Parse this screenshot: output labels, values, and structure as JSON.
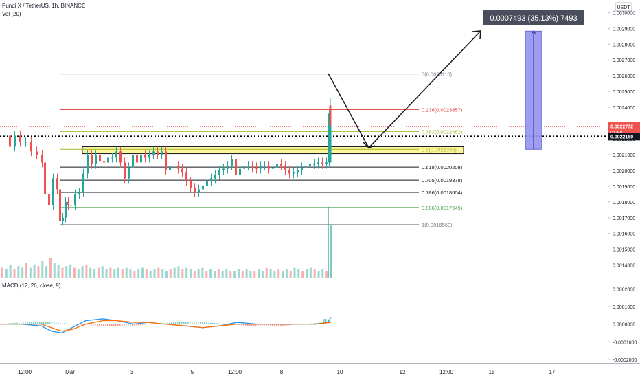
{
  "header": {
    "symbol_line": "Pundi X / TetherUS, 1h, BINANCE",
    "volume_label": "Vol (20)",
    "currency_badge": "USDT"
  },
  "measure_label": "0.0007493 (35.13%) 7493",
  "price_badges": {
    "last_price": "0.0022772",
    "countdown": "01:58",
    "dotted_level": "0.0022160"
  },
  "macd_label": "MACD (12, 26, close, 9)",
  "colors": {
    "up": "#26a69a",
    "down": "#ef5350",
    "fib_red": "#e53935",
    "fib_yellow": "#9bbd2a",
    "fib_green": "#43a047",
    "zone_fill": "#fff59d",
    "measure_fill": "#8c8cf0",
    "macd_line": "#2196f3",
    "signal_line": "#ff6d00"
  },
  "chart_data": {
    "type": "candlestick",
    "price_axis": {
      "ticks": [
        "0.0030000",
        "0.0029000",
        "0.0028000",
        "0.0027000",
        "0.0026000",
        "0.0025000",
        "0.0024000",
        "0.0023000",
        "0.0022000",
        "0.0021000",
        "0.0020000",
        "0.0019000",
        "0.0018000",
        "0.0017000",
        "0.0016000",
        "0.0015000",
        "0.0014000"
      ],
      "range": [
        0.00132,
        0.00308
      ]
    },
    "macd_axis": {
      "ticks": [
        "0.0002000",
        "0.0001000",
        "0.0000000",
        "-0.0001000",
        "-0.0002000"
      ],
      "range": [
        -0.00022,
        0.00026
      ]
    },
    "time_axis": [
      "12:00",
      "Mar",
      "3",
      "5",
      "12:00",
      "8",
      "10",
      "12",
      "12:00",
      "15",
      "17"
    ],
    "fib_levels": [
      {
        "label": "0(0.0026110)",
        "value": 0.002611,
        "tone": "gray"
      },
      {
        "label": "0.236(0.0023857)",
        "value": 0.0023857,
        "tone": "red"
      },
      {
        "label": "0.382(0.0022462)",
        "value": 0.0022462,
        "tone": "yellow"
      },
      {
        "label": "0.5(0.0021335)",
        "value": 0.0021335,
        "tone": "yellow"
      },
      {
        "label": "0.618(0.0020208)",
        "value": 0.0020208,
        "tone": "black"
      },
      {
        "label": "0.705(0.0019378)",
        "value": 0.0019378,
        "tone": "black"
      },
      {
        "label": "0.786(0.0018604)",
        "value": 0.0018604,
        "tone": "black"
      },
      {
        "label": "0.886(0.0017649)",
        "value": 0.0017649,
        "tone": "green"
      },
      {
        "label": "1(0.0016560)",
        "value": 0.001656,
        "tone": "gray"
      }
    ],
    "price_path": [
      [
        0,
        0.00222
      ],
      [
        8,
        0.00222
      ],
      [
        15,
        0.00215
      ],
      [
        22,
        0.00222
      ],
      [
        30,
        0.00218
      ],
      [
        38,
        0.00218
      ],
      [
        46,
        0.00212
      ],
      [
        54,
        0.0021
      ],
      [
        62,
        0.00205
      ],
      [
        66,
        0.00185
      ],
      [
        72,
        0.00178
      ],
      [
        78,
        0.00195
      ],
      [
        84,
        0.00188
      ],
      [
        88,
        0.00168
      ],
      [
        92,
        0.0017
      ],
      [
        96,
        0.0018
      ],
      [
        100,
        0.00178
      ],
      [
        104,
        0.00178
      ],
      [
        110,
        0.00185
      ],
      [
        116,
        0.00186
      ],
      [
        122,
        0.00198
      ],
      [
        128,
        0.0021
      ],
      [
        134,
        0.00204
      ],
      [
        140,
        0.0021
      ],
      [
        146,
        0.00206
      ],
      [
        152,
        0.00205
      ],
      [
        158,
        0.00208
      ],
      [
        164,
        0.00208
      ],
      [
        170,
        0.00212
      ],
      [
        176,
        0.00205
      ],
      [
        182,
        0.00195
      ],
      [
        188,
        0.00202
      ],
      [
        194,
        0.0021
      ],
      [
        200,
        0.00205
      ],
      [
        206,
        0.0021
      ],
      [
        212,
        0.00208
      ],
      [
        218,
        0.0021
      ],
      [
        224,
        0.00212
      ],
      [
        230,
        0.0021
      ],
      [
        236,
        0.00212
      ],
      [
        242,
        0.002
      ],
      [
        248,
        0.00203
      ],
      [
        254,
        0.00203
      ],
      [
        260,
        0.00201
      ],
      [
        266,
        0.00199
      ],
      [
        272,
        0.00193
      ],
      [
        278,
        0.00189
      ],
      [
        284,
        0.00186
      ],
      [
        290,
        0.00188
      ],
      [
        296,
        0.0019
      ],
      [
        302,
        0.00193
      ],
      [
        308,
        0.00195
      ],
      [
        314,
        0.00197
      ],
      [
        320,
        0.002
      ],
      [
        326,
        0.00201
      ],
      [
        332,
        0.00203
      ],
      [
        338,
        0.00207
      ],
      [
        344,
        0.00197
      ],
      [
        350,
        0.00201
      ],
      [
        356,
        0.00203
      ],
      [
        362,
        0.00203
      ],
      [
        368,
        0.00202
      ],
      [
        374,
        0.00201
      ],
      [
        380,
        0.00203
      ],
      [
        386,
        0.00203
      ],
      [
        392,
        0.00201
      ],
      [
        398,
        0.00202
      ],
      [
        404,
        0.00204
      ],
      [
        410,
        0.00203
      ],
      [
        416,
        0.002
      ],
      [
        422,
        0.00198
      ],
      [
        428,
        0.00199
      ],
      [
        434,
        0.002
      ],
      [
        440,
        0.00202
      ],
      [
        446,
        0.00203
      ],
      [
        452,
        0.00204
      ],
      [
        458,
        0.00204
      ],
      [
        464,
        0.00205
      ],
      [
        470,
        0.00204
      ],
      [
        476,
        0.00205
      ],
      [
        480,
        0.00236
      ]
    ],
    "volume_path": [
      0.06,
      0.05,
      0.08,
      0.05,
      0.07,
      0.06,
      0.09,
      0.06,
      0.08,
      0.07,
      0.1,
      0.07,
      0.12,
      0.09,
      0.08,
      0.06,
      0.07,
      0.08,
      0.06,
      0.05,
      0.07,
      0.08,
      0.06,
      0.05,
      0.06,
      0.07,
      0.05,
      0.06,
      0.05,
      0.06,
      0.05,
      0.06,
      0.05,
      0.04,
      0.05,
      0.06,
      0.05,
      0.04,
      0.05,
      0.06,
      0.05,
      0.04,
      0.05,
      0.06,
      0.07,
      0.05,
      0.06,
      0.05,
      0.04,
      0.05,
      0.06,
      0.04,
      0.05,
      0.04,
      0.05,
      0.04,
      0.05,
      0.04,
      0.04,
      0.05,
      0.04,
      0.05,
      0.04,
      0.04,
      0.05,
      0.04,
      0.06,
      0.05,
      0.04,
      0.05,
      0.04,
      0.05,
      0.04,
      0.06,
      0.05,
      0.04,
      0.05,
      0.06,
      0.05,
      0.04,
      0.05,
      0.04
    ],
    "macd_line": [
      [
        0,
        0.0
      ],
      [
        30,
        0.0
      ],
      [
        60,
        -1e-05
      ],
      [
        75,
        -4e-05
      ],
      [
        90,
        -5e-05
      ],
      [
        105,
        -2e-05
      ],
      [
        125,
        2e-05
      ],
      [
        150,
        3e-05
      ],
      [
        170,
        2e-05
      ],
      [
        195,
        0.0
      ],
      [
        215,
        1e-05
      ],
      [
        240,
        0.0
      ],
      [
        270,
        -1e-05
      ],
      [
        295,
        -2e-05
      ],
      [
        320,
        -1e-05
      ],
      [
        345,
        1e-05
      ],
      [
        375,
        0.0
      ],
      [
        405,
        0.0
      ],
      [
        435,
        0.0
      ],
      [
        460,
        0.0
      ],
      [
        478,
        1e-05
      ],
      [
        482,
        4e-05
      ]
    ],
    "signal_line": [
      [
        0,
        0.0
      ],
      [
        30,
        0.0
      ],
      [
        60,
        0.0
      ],
      [
        75,
        -2e-05
      ],
      [
        90,
        -4e-05
      ],
      [
        105,
        -3e-05
      ],
      [
        125,
        0.0
      ],
      [
        150,
        2e-05
      ],
      [
        170,
        2e-05
      ],
      [
        195,
        1e-05
      ],
      [
        215,
        1e-05
      ],
      [
        240,
        0.0
      ],
      [
        270,
        -1e-05
      ],
      [
        295,
        -2e-05
      ],
      [
        320,
        -1e-05
      ],
      [
        345,
        0.0
      ],
      [
        375,
        0.0
      ],
      [
        405,
        0.0
      ],
      [
        435,
        0.0
      ],
      [
        460,
        0.0
      ],
      [
        482,
        1e-05
      ]
    ],
    "measure": {
      "from": 0.0021335,
      "to": 0.0028828
    }
  }
}
